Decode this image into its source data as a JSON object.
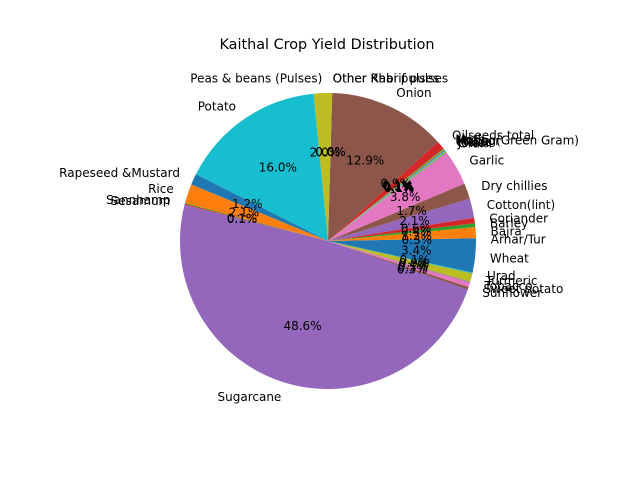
{
  "chart_data": {
    "type": "pie",
    "title": "Kaithal Crop Yield Distribution",
    "start_angle_deg": 0,
    "counterclock": true,
    "pct_format": "%1.1f%%",
    "slices": [
      {
        "label": "Arhar/Tur",
        "value": 0.3,
        "color": "#1f77b4"
      },
      {
        "label": "Bajra",
        "value": 1.2,
        "color": "#ff7f0e"
      },
      {
        "label": "Barley",
        "value": 0.4,
        "color": "#2ca02c"
      },
      {
        "label": "Coriander",
        "value": 0.6,
        "color": "#d62728"
      },
      {
        "label": "Cotton(lint)",
        "value": 2.1,
        "color": "#9467bd"
      },
      {
        "label": "Dry chillies",
        "value": 1.7,
        "color": "#8c564b"
      },
      {
        "label": "Garlic",
        "value": 3.8,
        "color": "#e377c2"
      },
      {
        "label": "Gram",
        "value": 0.1,
        "color": "#7f7f7f"
      },
      {
        "label": "Jowar",
        "value": 0.1,
        "color": "#bcbd22"
      },
      {
        "label": "Maize",
        "value": 0.1,
        "color": "#17becf"
      },
      {
        "label": "Masoor",
        "value": 0.1,
        "color": "#1f77b4"
      },
      {
        "label": "Moong(Green Gram)",
        "value": 0.1,
        "color": "#ff7f0e"
      },
      {
        "label": "Moth",
        "value": 0.1,
        "color": "#2ca02c"
      },
      {
        "label": "Oilseeds total",
        "value": 0.9,
        "color": "#d62728"
      },
      {
        "label": "Onion",
        "value": 12.8,
        "color": "#8c564b"
      },
      {
        "label": "Other Kharif pulses",
        "value": 0.0,
        "color": "#e377c2"
      },
      {
        "label": "Other Rabi pulses",
        "value": 0.0,
        "color": "#7f7f7f"
      },
      {
        "label": "Peas & beans (Pulses)",
        "value": 2.0,
        "color": "#bcbd22"
      },
      {
        "label": "Potato",
        "value": 15.9,
        "color": "#17becf"
      },
      {
        "label": "Rapeseed &Mustard",
        "value": 1.2,
        "color": "#1f77b4"
      },
      {
        "label": "Rice",
        "value": 2.1,
        "color": "#ff7f0e"
      },
      {
        "label": "Sannhamp",
        "value": 0.1,
        "color": "#2ca02c"
      },
      {
        "label": "Sesamum",
        "value": 0.1,
        "color": "#d62728"
      },
      {
        "label": "Sugarcane",
        "value": 48.3,
        "color": "#9467bd"
      },
      {
        "label": "Sunflower",
        "value": 0.3,
        "color": "#8c564b"
      },
      {
        "label": "Sweet potato",
        "value": 0.5,
        "color": "#e377c2"
      },
      {
        "label": "Tobacco",
        "value": 0.1,
        "color": "#7f7f7f"
      },
      {
        "label": "Turmeric",
        "value": 0.9,
        "color": "#bcbd22"
      },
      {
        "label": "Urad",
        "value": 0.1,
        "color": "#17becf"
      },
      {
        "label": "Wheat",
        "value": 3.4,
        "color": "#1f77b4"
      }
    ]
  }
}
